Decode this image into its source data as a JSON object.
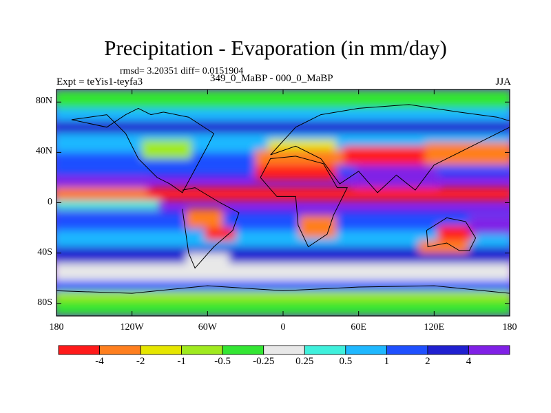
{
  "title": "Precipitation - Evaporation (in mm/day)",
  "stats": "rmsd= 3.20351 diff= 0.0151904",
  "experiment": "Expt = teYis1-teyfa3",
  "subtitle": "349_0_MaBP - 000_0_MaBP",
  "season": "JJA",
  "y_axis": {
    "ticks": [
      {
        "label": "80N",
        "lat": 80
      },
      {
        "label": "40N",
        "lat": 40
      },
      {
        "label": "0",
        "lat": 0
      },
      {
        "label": "40S",
        "lat": -40
      },
      {
        "label": "80S",
        "lat": -80
      }
    ],
    "range": [
      -90,
      90
    ]
  },
  "x_axis": {
    "ticks": [
      {
        "label": "180",
        "lon": -180
      },
      {
        "label": "120W",
        "lon": -120
      },
      {
        "label": "60W",
        "lon": -60
      },
      {
        "label": "0",
        "lon": 0
      },
      {
        "label": "60E",
        "lon": 60
      },
      {
        "label": "120E",
        "lon": 120
      },
      {
        "label": "180",
        "lon": 180
      }
    ],
    "range": [
      -180,
      180
    ]
  },
  "colorbar": {
    "colors": [
      "#ff1a1a",
      "#ff7f1f",
      "#e6e600",
      "#a0ea1f",
      "#33e633",
      "#e8e8e8",
      "#3ff0dc",
      "#1fb8ff",
      "#1f50ff",
      "#2020d0",
      "#8020e6"
    ],
    "labels": [
      "-4",
      "-2",
      "-1",
      "-0.5",
      "-0.25",
      "0.25",
      "0.5",
      "1",
      "2",
      "4"
    ]
  },
  "field": {
    "background_color": "#8020e6",
    "regions": [
      {
        "color": "#e8e8e8",
        "lon": [
          -180,
          180
        ],
        "lat": [
          -62,
          -48
        ]
      },
      {
        "color": "#2020d0",
        "lon": [
          -180,
          180
        ],
        "lat": [
          -48,
          -35
        ]
      },
      {
        "color": "#1fb8ff",
        "lon": [
          -180,
          180
        ],
        "lat": [
          -35,
          -22
        ]
      },
      {
        "color": "#1f50ff",
        "lon": [
          -180,
          180
        ],
        "lat": [
          -22,
          -8
        ]
      },
      {
        "color": "#ff1a1a",
        "lon": [
          -180,
          180
        ],
        "lat": [
          2,
          12
        ]
      },
      {
        "color": "#1f50ff",
        "lon": [
          -180,
          180
        ],
        "lat": [
          22,
          40
        ]
      },
      {
        "color": "#1fb8ff",
        "lon": [
          -180,
          180
        ],
        "lat": [
          40,
          55
        ]
      },
      {
        "color": "#2020d0",
        "lon": [
          -180,
          180
        ],
        "lat": [
          55,
          65
        ]
      },
      {
        "color": "#1fb8ff",
        "lon": [
          -180,
          180
        ],
        "lat": [
          65,
          75
        ]
      },
      {
        "color": "#33e633",
        "lon": [
          -180,
          180
        ],
        "lat": [
          75,
          90
        ]
      },
      {
        "color": "#33e633",
        "lon": [
          -180,
          180
        ],
        "lat": [
          -90,
          -78
        ]
      },
      {
        "color": "#a0ea1f",
        "lon": [
          -180,
          180
        ],
        "lat": [
          -78,
          -70
        ]
      },
      {
        "color": "#1f50ff",
        "lon": [
          -180,
          180
        ],
        "lat": [
          -70,
          -62
        ]
      },
      {
        "color": "#ff7f1f",
        "lon": [
          -180,
          -110
        ],
        "lat": [
          4,
          12
        ]
      },
      {
        "color": "#8020e6",
        "lon": [
          -180,
          -110
        ],
        "lat": [
          12,
          20
        ]
      },
      {
        "color": "#3ff0dc",
        "lon": [
          -180,
          -100
        ],
        "lat": [
          -6,
          2
        ]
      },
      {
        "color": "#ff1a1a",
        "lon": [
          -20,
          40
        ],
        "lat": [
          18,
          30
        ]
      },
      {
        "color": "#ff7f1f",
        "lon": [
          -20,
          50
        ],
        "lat": [
          30,
          42
        ]
      },
      {
        "color": "#e6e600",
        "lon": [
          -10,
          40
        ],
        "lat": [
          42,
          50
        ]
      },
      {
        "color": "#ff1a1a",
        "lon": [
          50,
          115
        ],
        "lat": [
          30,
          45
        ]
      },
      {
        "color": "#ff7f1f",
        "lon": [
          115,
          180
        ],
        "lat": [
          30,
          48
        ]
      },
      {
        "color": "#8020e6",
        "lon": [
          60,
          120
        ],
        "lat": [
          12,
          30
        ]
      },
      {
        "color": "#a0ea1f",
        "lon": [
          -110,
          -75
        ],
        "lat": [
          35,
          50
        ]
      },
      {
        "color": "#ff7f1f",
        "lon": [
          -75,
          -50
        ],
        "lat": [
          -20,
          -5
        ]
      },
      {
        "color": "#ff1a1a",
        "lon": [
          -60,
          -40
        ],
        "lat": [
          -30,
          -20
        ]
      },
      {
        "color": "#ff7f1f",
        "lon": [
          15,
          40
        ],
        "lat": [
          -28,
          -10
        ]
      },
      {
        "color": "#ff1a1a",
        "lon": [
          125,
          150
        ],
        "lat": [
          -30,
          -18
        ]
      },
      {
        "color": "#ff7f1f",
        "lon": [
          110,
          145
        ],
        "lat": [
          -40,
          -30
        ]
      },
      {
        "color": "#8020e6",
        "lon": [
          150,
          180
        ],
        "lat": [
          -25,
          -10
        ]
      },
      {
        "color": "#e8e8e8",
        "lon": [
          -75,
          -45
        ],
        "lat": [
          -55,
          -40
        ]
      }
    ],
    "coastlines": [
      {
        "lon": [
          -168,
          -140,
          -125,
          -115,
          -100,
          -90,
          -80,
          -60,
          -55,
          -75,
          -95,
          -105,
          -115,
          -125,
          -140,
          -168
        ],
        "lat": [
          66,
          70,
          55,
          35,
          20,
          15,
          8,
          45,
          55,
          68,
          72,
          70,
          75,
          70,
          60,
          66
        ]
      },
      {
        "lon": [
          -80,
          -70,
          -50,
          -35,
          -40,
          -55,
          -70,
          -75,
          -80
        ],
        "lat": [
          10,
          12,
          0,
          -8,
          -22,
          -35,
          -52,
          -40,
          -5
        ]
      },
      {
        "lon": [
          -18,
          -10,
          10,
          32,
          43,
          51,
          40,
          35,
          20,
          12,
          10,
          -5,
          -18
        ],
        "lat": [
          20,
          35,
          37,
          31,
          12,
          12,
          -10,
          -25,
          -35,
          -18,
          5,
          5,
          20
        ]
      },
      {
        "lon": [
          -10,
          10,
          30,
          60,
          100,
          140,
          170,
          180,
          180,
          140,
          120,
          105,
          90,
          75,
          60,
          45,
          30,
          10,
          -10
        ],
        "lat": [
          38,
          60,
          70,
          75,
          78,
          72,
          68,
          65,
          60,
          40,
          30,
          10,
          22,
          8,
          25,
          15,
          35,
          45,
          38
        ]
      },
      {
        "lon": [
          114,
          130,
          145,
          153,
          148,
          140,
          130,
          115,
          114
        ],
        "lat": [
          -22,
          -12,
          -15,
          -28,
          -38,
          -38,
          -32,
          -35,
          -22
        ]
      },
      {
        "lon": [
          -180,
          -120,
          -60,
          0,
          60,
          120,
          180
        ],
        "lat": [
          -70,
          -72,
          -66,
          -70,
          -67,
          -66,
          -72
        ]
      }
    ]
  }
}
